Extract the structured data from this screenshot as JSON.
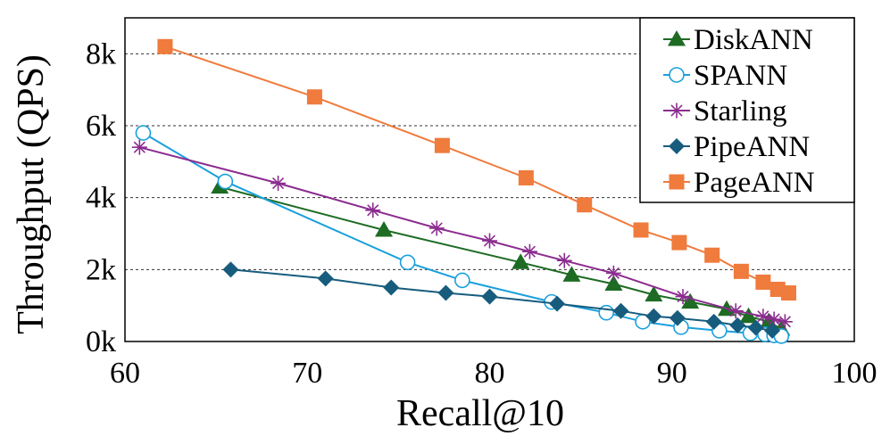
{
  "chart_data": {
    "type": "line",
    "title": "",
    "xlabel": "Recall@10",
    "ylabel": "Throughput (QPS)",
    "xlim": [
      60,
      100
    ],
    "ylim": [
      0,
      9000
    ],
    "xticks": [
      60,
      70,
      80,
      90,
      100
    ],
    "xtick_labels": [
      "60",
      "70",
      "80",
      "90",
      "100"
    ],
    "yticks": [
      0,
      2000,
      4000,
      6000,
      8000
    ],
    "ytick_labels": [
      "0k",
      "2k",
      "4k",
      "6k",
      "8k"
    ],
    "grid": "horizontal dashed",
    "legend_position": "top-right",
    "series": [
      {
        "name": "DiskANN",
        "color": "#1e6b24",
        "marker": "triangle",
        "x": [
          65.2,
          74.2,
          81.7,
          84.5,
          86.8,
          89.0,
          91.0,
          93.0,
          94.2,
          95.3,
          96.0
        ],
        "y": [
          4300,
          3100,
          2200,
          1850,
          1600,
          1300,
          1100,
          900,
          700,
          550,
          350
        ]
      },
      {
        "name": "SPANN",
        "color": "#1aa0dc",
        "marker": "open-circle",
        "x": [
          61.0,
          65.5,
          75.5,
          78.5,
          83.4,
          86.4,
          88.4,
          90.5,
          92.6,
          94.3,
          95.1,
          95.6,
          96.0
        ],
        "y": [
          5800,
          4450,
          2200,
          1700,
          1100,
          800,
          550,
          400,
          300,
          230,
          200,
          170,
          150
        ]
      },
      {
        "name": "Starling",
        "color": "#8b2c8f",
        "marker": "asterisk",
        "x": [
          60.8,
          68.4,
          73.6,
          77.1,
          80.0,
          82.2,
          84.1,
          86.8,
          90.6,
          93.5,
          95.0,
          95.6,
          96.2
        ],
        "y": [
          5400,
          4400,
          3650,
          3150,
          2800,
          2500,
          2250,
          1900,
          1250,
          850,
          700,
          620,
          550
        ]
      },
      {
        "name": "PipeANN",
        "color": "#175c7d",
        "marker": "diamond",
        "x": [
          65.8,
          71.0,
          74.6,
          77.6,
          80.0,
          83.7,
          87.2,
          89.0,
          90.3,
          92.3,
          93.6,
          94.6,
          95.5
        ],
        "y": [
          2000,
          1750,
          1500,
          1350,
          1250,
          1050,
          850,
          700,
          650,
          550,
          450,
          380,
          300
        ]
      },
      {
        "name": "PageANN",
        "color": "#ef7b3c",
        "marker": "square",
        "x": [
          62.2,
          70.4,
          77.4,
          82.0,
          85.2,
          88.3,
          90.4,
          92.2,
          93.8,
          95.0,
          95.8,
          96.4
        ],
        "y": [
          8200,
          6800,
          5450,
          4550,
          3800,
          3100,
          2750,
          2400,
          1950,
          1650,
          1450,
          1350
        ]
      }
    ]
  }
}
